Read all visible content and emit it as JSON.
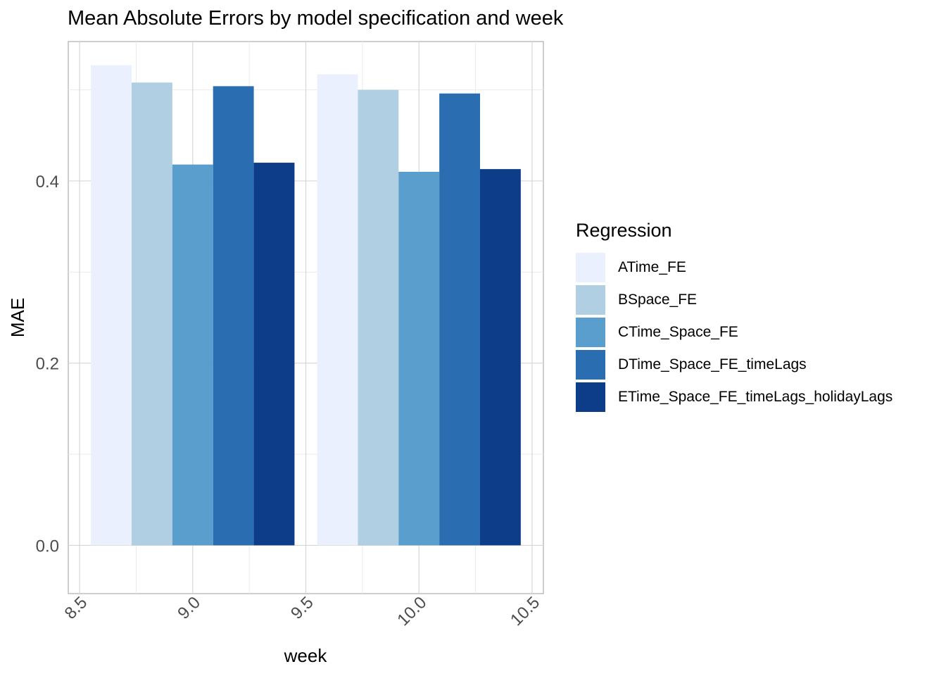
{
  "chart_data": {
    "type": "bar",
    "title": "Mean Absolute Errors by model specification and week",
    "xlabel": "week",
    "ylabel": "MAE",
    "xlim": [
      8.45,
      10.55
    ],
    "ylim": [
      -0.053,
      0.553
    ],
    "x_ticks": [
      "8.5",
      "9.0",
      "9.5",
      "10.0",
      "10.5"
    ],
    "y_ticks": [
      "0.0",
      "0.2",
      "0.4"
    ],
    "categories": [
      "9",
      "10"
    ],
    "legend_title": "Regression",
    "legend_position": "right",
    "grid": true,
    "series": [
      {
        "name": "ATime_FE",
        "color": "#eaf0fd",
        "values": [
          0.527,
          0.517
        ]
      },
      {
        "name": "BSpace_FE",
        "color": "#b1cfe3",
        "values": [
          0.508,
          0.5
        ]
      },
      {
        "name": "CTime_Space_FE",
        "color": "#5a9ecd",
        "values": [
          0.418,
          0.41
        ]
      },
      {
        "name": "DTime_Space_FE_timeLags",
        "color": "#2a6db0",
        "values": [
          0.504,
          0.496
        ]
      },
      {
        "name": "ETime_Space_FE_timeLags_holidayLags",
        "color": "#0d3c88",
        "values": [
          0.42,
          0.413
        ]
      }
    ]
  }
}
